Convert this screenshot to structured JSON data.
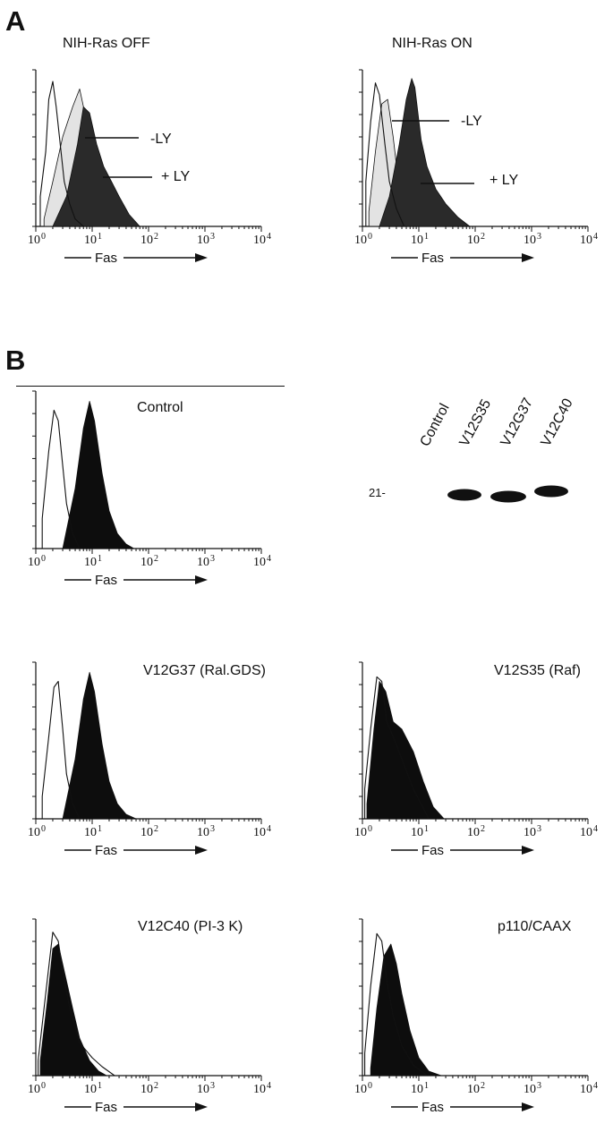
{
  "panel_a": {
    "letter": "A",
    "histograms": [
      {
        "title": "NIH-Ras OFF",
        "labels": [
          "-LY",
          "+ LY"
        ]
      },
      {
        "title": "NIH-Ras ON",
        "labels": [
          "-LY",
          "+ LY"
        ]
      }
    ]
  },
  "panel_b": {
    "letter": "B",
    "histograms": [
      {
        "title": "Control"
      },
      {
        "title": "V12G37 (Ral.GDS)"
      },
      {
        "title": "V12S35 (Raf)"
      },
      {
        "title": "V12C40 (PI-3 K)"
      },
      {
        "title": "p110/CAAX"
      }
    ],
    "blot": {
      "lanes": [
        "Control",
        "V12S35",
        "V12G37",
        "V12C40"
      ],
      "marker": "21-"
    }
  },
  "axis": {
    "x_label": "Fas",
    "ticks": [
      {
        "base": "10",
        "exp": "0"
      },
      {
        "base": "10",
        "exp": "1"
      },
      {
        "base": "10",
        "exp": "2"
      },
      {
        "base": "10",
        "exp": "3"
      },
      {
        "base": "10",
        "exp": "4"
      }
    ]
  },
  "colors": {
    "ink": "#111111",
    "light_fill": "#e3e3e3",
    "dark_fill": "#2a2a2a",
    "black_fill": "#0d0d0d"
  },
  "chart_data": [
    {
      "type": "area",
      "title": "NIH-Ras OFF",
      "xlabel": "Fas",
      "x_scale": "log",
      "xlim": [
        1,
        10000
      ],
      "series": [
        {
          "name": "",
          "style": "open",
          "x": [
            1.2,
            1.5,
            1.7,
            2,
            2.3,
            2.8,
            3.2,
            4,
            5,
            7
          ],
          "values": [
            0.2,
            0.5,
            0.85,
            0.97,
            0.8,
            0.5,
            0.3,
            0.15,
            0.05,
            0
          ]
        },
        {
          "name": "-LY",
          "style": "light",
          "x": [
            1.4,
            2,
            3,
            4.5,
            6,
            7.5,
            10,
            15,
            22
          ],
          "values": [
            0.05,
            0.3,
            0.6,
            0.8,
            0.92,
            0.75,
            0.4,
            0.1,
            0
          ]
        },
        {
          "name": "+ LY",
          "style": "dark",
          "x": [
            2,
            3.5,
            5.5,
            7,
            9,
            12,
            16,
            22,
            30,
            45,
            70
          ],
          "values": [
            0,
            0.2,
            0.55,
            0.8,
            0.76,
            0.55,
            0.4,
            0.3,
            0.2,
            0.08,
            0
          ]
        }
      ]
    },
    {
      "type": "area",
      "title": "NIH-Ras ON",
      "xlabel": "Fas",
      "x_scale": "log",
      "xlim": [
        1,
        10000
      ],
      "series": [
        {
          "name": "",
          "style": "open",
          "x": [
            1.15,
            1.4,
            1.7,
            2,
            2.5,
            3,
            4,
            5.5
          ],
          "values": [
            0.3,
            0.7,
            0.96,
            0.88,
            0.55,
            0.3,
            0.12,
            0
          ]
        },
        {
          "name": "-LY",
          "style": "light",
          "x": [
            1.3,
            1.7,
            2.2,
            2.8,
            3.5,
            4.5,
            6
          ],
          "values": [
            0.1,
            0.5,
            0.82,
            0.85,
            0.6,
            0.25,
            0
          ]
        },
        {
          "name": "+ LY",
          "style": "dark",
          "x": [
            2,
            3,
            4.5,
            6,
            7.5,
            8.5,
            11,
            14,
            20,
            30,
            50,
            80
          ],
          "values": [
            0,
            0.2,
            0.55,
            0.85,
            0.99,
            0.93,
            0.58,
            0.4,
            0.25,
            0.15,
            0.06,
            0
          ]
        }
      ]
    },
    {
      "type": "area",
      "title": "Control",
      "xlabel": "Fas",
      "x_scale": "log",
      "xlim": [
        1,
        10000
      ],
      "series": [
        {
          "name": "",
          "style": "open",
          "x": [
            1.3,
            1.7,
            2.1,
            2.5,
            3,
            3.5,
            4.5,
            6
          ],
          "values": [
            0.2,
            0.65,
            0.92,
            0.85,
            0.55,
            0.3,
            0.1,
            0
          ]
        },
        {
          "name": "",
          "style": "black",
          "x": [
            3,
            5,
            7,
            9,
            11,
            15,
            20,
            28,
            40,
            55
          ],
          "values": [
            0,
            0.4,
            0.8,
            0.98,
            0.85,
            0.5,
            0.25,
            0.1,
            0.03,
            0
          ]
        }
      ]
    },
    {
      "type": "area",
      "title": "V12G37 (Ral.GDS)",
      "xlabel": "Fas",
      "x_scale": "log",
      "xlim": [
        1,
        10000
      ],
      "series": [
        {
          "name": "",
          "style": "open",
          "x": [
            1.3,
            1.7,
            2.1,
            2.5,
            3,
            3.5,
            4.5,
            6
          ],
          "values": [
            0.15,
            0.55,
            0.88,
            0.92,
            0.6,
            0.3,
            0.1,
            0
          ]
        },
        {
          "name": "",
          "style": "black",
          "x": [
            3,
            5,
            7,
            9,
            11,
            15,
            20,
            28,
            40,
            60
          ],
          "values": [
            0,
            0.4,
            0.8,
            0.98,
            0.85,
            0.5,
            0.25,
            0.1,
            0.03,
            0
          ]
        }
      ]
    },
    {
      "type": "area",
      "title": "V12S35 (Raf)",
      "xlabel": "Fas",
      "x_scale": "log",
      "xlim": [
        1,
        10000
      ],
      "series": [
        {
          "name": "",
          "style": "open",
          "x": [
            1.1,
            1.4,
            1.8,
            2.2,
            2.7,
            3.5,
            5,
            8,
            15
          ],
          "values": [
            0.2,
            0.6,
            0.95,
            0.92,
            0.65,
            0.55,
            0.4,
            0.2,
            0
          ]
        },
        {
          "name": "",
          "style": "black",
          "x": [
            1.2,
            1.6,
            2,
            2.6,
            3.5,
            5,
            8,
            12,
            18,
            28
          ],
          "values": [
            0.1,
            0.6,
            0.92,
            0.85,
            0.65,
            0.6,
            0.45,
            0.25,
            0.08,
            0
          ]
        }
      ]
    },
    {
      "type": "area",
      "title": "V12C40 (PI-3 K)",
      "xlabel": "Fas",
      "x_scale": "log",
      "xlim": [
        1,
        10000
      ],
      "series": [
        {
          "name": "",
          "style": "open",
          "x": [
            1.1,
            1.5,
            2,
            2.5,
            3,
            4,
            6,
            10,
            15,
            25
          ],
          "values": [
            0.1,
            0.55,
            0.96,
            0.9,
            0.7,
            0.45,
            0.22,
            0.12,
            0.06,
            0
          ]
        },
        {
          "name": "",
          "style": "black",
          "x": [
            1.2,
            1.6,
            2,
            2.5,
            3.2,
            4.5,
            6,
            9,
            13,
            18
          ],
          "values": [
            0.1,
            0.5,
            0.85,
            0.88,
            0.7,
            0.45,
            0.25,
            0.1,
            0.03,
            0
          ]
        }
      ]
    },
    {
      "type": "area",
      "title": "p110/CAAX",
      "xlabel": "Fas",
      "x_scale": "log",
      "xlim": [
        1,
        10000
      ],
      "series": [
        {
          "name": "",
          "style": "open",
          "x": [
            1.1,
            1.4,
            1.8,
            2.2,
            2.8,
            3.5,
            5,
            8,
            14
          ],
          "values": [
            0.15,
            0.6,
            0.95,
            0.9,
            0.6,
            0.4,
            0.2,
            0.07,
            0
          ]
        },
        {
          "name": "",
          "style": "black",
          "x": [
            1.4,
            1.8,
            2.4,
            3.2,
            4,
            5,
            7,
            10,
            15,
            25
          ],
          "values": [
            0.05,
            0.45,
            0.8,
            0.88,
            0.75,
            0.55,
            0.3,
            0.12,
            0.03,
            0
          ]
        }
      ]
    }
  ]
}
